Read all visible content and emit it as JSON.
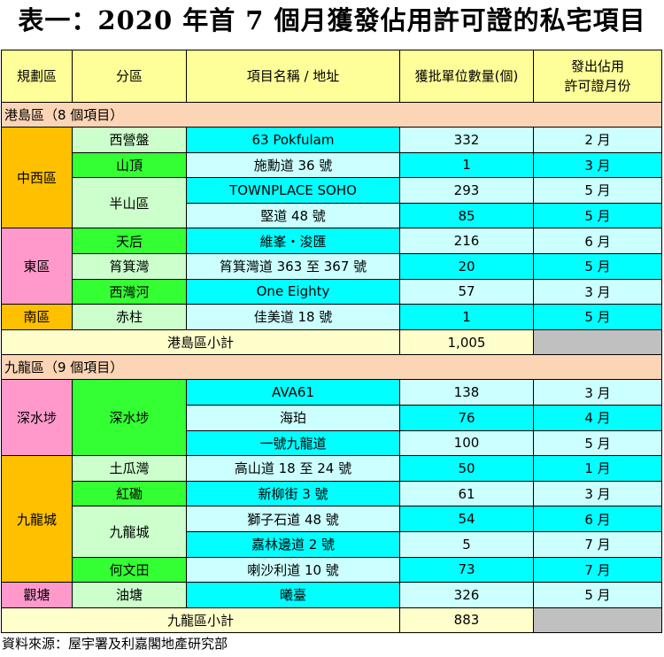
{
  "title": "表一：2020 年首 7 個月獲發佔用許可證的私宅項目",
  "header": {
    "district": "規劃區",
    "subdistrict": "分區",
    "project": "項目名稱 / 地址",
    "units": "獲批單位數量(個)",
    "month_line1": "發出佔用",
    "month_line2": "許可證月份"
  },
  "hk_island": {
    "section_label": "港島區（8 個項目）",
    "districts": {
      "central_western": "中西區",
      "eastern": "東區",
      "southern": "南區"
    },
    "subdistricts": {
      "sai_ying_pun": "西營盤",
      "the_peak": "山頂",
      "mid_levels": "半山區",
      "tin_hau": "天后",
      "shau_kei_wan": "筲箕灣",
      "sai_wan_ho": "西灣河",
      "stanley": "赤柱"
    },
    "rows": [
      {
        "project": "63 Pokfulam",
        "units": "332",
        "month": "2 月"
      },
      {
        "project": "施勳道 36 號",
        "units": "1",
        "month": "3 月"
      },
      {
        "project": "TOWNPLACE SOHO",
        "units": "293",
        "month": "5 月"
      },
      {
        "project": "堅道 48 號",
        "units": "85",
        "month": "5 月"
      },
      {
        "project": "維峯・浚匯",
        "units": "216",
        "month": "6 月"
      },
      {
        "project": "筲箕灣道 363 至 367 號",
        "units": "20",
        "month": "5 月"
      },
      {
        "project": "One Eighty",
        "units": "57",
        "month": "3 月"
      },
      {
        "project": "佳美道 18 號",
        "units": "1",
        "month": "5 月"
      }
    ],
    "subtotal_label": "港島區小計",
    "subtotal": "1,005"
  },
  "kowloon": {
    "section_label": "九龍區（9 個項目）",
    "districts": {
      "sham_shui_po": "深水埗",
      "kowloon_city": "九龍城",
      "kwun_tong": "觀塘"
    },
    "subdistricts": {
      "sham_shui_po": "深水埗",
      "to_kwa_wan": "土瓜灣",
      "hung_hom": "紅磡",
      "kowloon_city": "九龍城",
      "ho_man_tin": "何文田",
      "yau_tong": "油塘"
    },
    "rows": [
      {
        "project": "AVA61",
        "units": "138",
        "month": "3 月"
      },
      {
        "project": "海珀",
        "units": "76",
        "month": "4 月"
      },
      {
        "project": "一號九龍道",
        "units": "100",
        "month": "5 月"
      },
      {
        "project": "高山道 18 至 24 號",
        "units": "50",
        "month": "1 月"
      },
      {
        "project": "新柳街 3 號",
        "units": "61",
        "month": "3 月"
      },
      {
        "project": "獅子石道 48 號",
        "units": "54",
        "month": "6 月"
      },
      {
        "project": "嘉林邊道 2 號",
        "units": "5",
        "month": "7 月"
      },
      {
        "project": "喇沙利道 10 號",
        "units": "73",
        "month": "7 月"
      },
      {
        "project": "曦臺",
        "units": "326",
        "month": "5 月"
      }
    ],
    "subtotal_label": "九龍區小計",
    "subtotal": "883"
  },
  "source": "資料來源：屋宇署及利嘉閣地產研究部",
  "colors": {
    "header": "#ffff99",
    "section": "#fbd5b5",
    "hk_district": "#ffc000",
    "east_district": "#ff99cc",
    "light_green": "#ccffcc",
    "green": "#33ff33",
    "cyan": "#00ffff",
    "light_cyan": "#ccffff",
    "subtotal": "#ffffcc",
    "grey": "#c0c0c0"
  }
}
